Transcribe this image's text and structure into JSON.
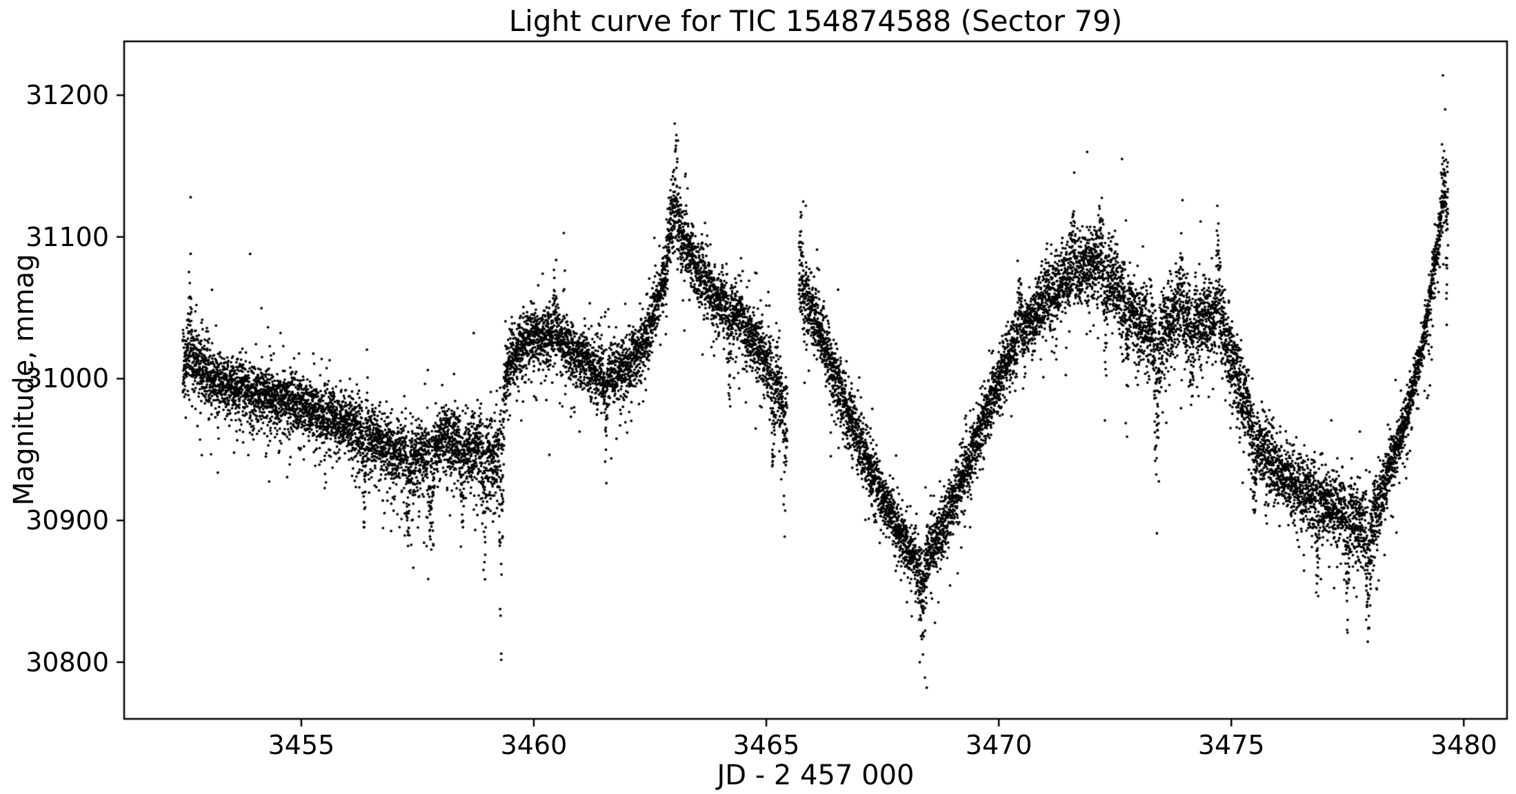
{
  "chart_data": {
    "type": "scatter",
    "title": "Light curve for TIC 154874588 (Sector 79)",
    "xlabel": "JD - 2 457 000",
    "ylabel": "Magnitude, mmag",
    "xlim": [
      3451.19,
      3480.93
    ],
    "ylim": [
      30760,
      31238
    ],
    "xticks": [
      3455,
      3460,
      3465,
      3470,
      3475,
      3480
    ],
    "yticks": [
      30800,
      30900,
      31000,
      31100,
      31200
    ],
    "grid": false,
    "legend": null,
    "background": "#ffffff",
    "marker": {
      "color": "#000000",
      "radius_px": 1.9
    },
    "data_start": 3452.45,
    "data_end": 3479.66,
    "gaps": [
      [
        3465.45,
        3465.7
      ]
    ],
    "points_per_day": 600,
    "seed": 20240613,
    "trend": [
      [
        3452.45,
        31012,
        30
      ],
      [
        3452.75,
        31012,
        24
      ],
      [
        3453.2,
        30998,
        21
      ],
      [
        3454.0,
        30990,
        21
      ],
      [
        3454.7,
        30984,
        21
      ],
      [
        3455.4,
        30976,
        21
      ],
      [
        3456.1,
        30966,
        22
      ],
      [
        3456.8,
        30952,
        24
      ],
      [
        3457.5,
        30943,
        26
      ],
      [
        3458.1,
        30957,
        24
      ],
      [
        3458.7,
        30950,
        26
      ],
      [
        3459.22,
        30942,
        30
      ],
      [
        3459.28,
        30975,
        36
      ],
      [
        3459.5,
        31015,
        22
      ],
      [
        3459.9,
        31028,
        21
      ],
      [
        3460.5,
        31030,
        21
      ],
      [
        3461.0,
        31015,
        22
      ],
      [
        3461.5,
        31000,
        23
      ],
      [
        3462.0,
        31008,
        22
      ],
      [
        3462.45,
        31030,
        22
      ],
      [
        3462.8,
        31072,
        22
      ],
      [
        3463.05,
        31112,
        22
      ],
      [
        3463.35,
        31088,
        22
      ],
      [
        3463.8,
        31060,
        22
      ],
      [
        3464.35,
        31048,
        22
      ],
      [
        3464.85,
        31020,
        24
      ],
      [
        3465.2,
        30998,
        28
      ],
      [
        3465.45,
        30970,
        32
      ],
      [
        3465.7,
        31062,
        28
      ],
      [
        3466.0,
        31048,
        24
      ],
      [
        3466.5,
        31000,
        22
      ],
      [
        3467.0,
        30955,
        21
      ],
      [
        3467.5,
        30917,
        21
      ],
      [
        3468.0,
        30883,
        21
      ],
      [
        3468.35,
        30866,
        21
      ],
      [
        3468.8,
        30896,
        21
      ],
      [
        3469.3,
        30936,
        21
      ],
      [
        3469.8,
        30982,
        22
      ],
      [
        3470.3,
        31022,
        23
      ],
      [
        3470.9,
        31052,
        24
      ],
      [
        3471.5,
        31075,
        25
      ],
      [
        3472.1,
        31082,
        25
      ],
      [
        3472.6,
        31060,
        27
      ],
      [
        3473.05,
        31040,
        25
      ],
      [
        3473.4,
        31028,
        30
      ],
      [
        3473.8,
        31042,
        28
      ],
      [
        3474.3,
        31038,
        30
      ],
      [
        3474.7,
        31045,
        30
      ],
      [
        3475.1,
        31005,
        26
      ],
      [
        3475.6,
        30952,
        25
      ],
      [
        3476.1,
        30930,
        25
      ],
      [
        3476.6,
        30920,
        25
      ],
      [
        3477.1,
        30913,
        26
      ],
      [
        3477.6,
        30903,
        27
      ],
      [
        3477.95,
        30888,
        28
      ],
      [
        3478.4,
        30936,
        20
      ],
      [
        3478.8,
        30978,
        16
      ],
      [
        3479.1,
        31020,
        15
      ],
      [
        3479.3,
        31065,
        15
      ],
      [
        3479.5,
        31108,
        16
      ],
      [
        3479.66,
        31138,
        18
      ]
    ],
    "dip_features": [
      [
        3456.35,
        0.05,
        65
      ],
      [
        3457.3,
        0.05,
        75
      ],
      [
        3457.8,
        0.06,
        85
      ],
      [
        3458.45,
        0.05,
        70
      ],
      [
        3458.95,
        0.05,
        75
      ],
      [
        3459.3,
        0.055,
        160
      ],
      [
        3461.55,
        0.04,
        55
      ],
      [
        3464.2,
        0.05,
        75
      ],
      [
        3465.15,
        0.04,
        85
      ],
      [
        3465.4,
        0.04,
        90
      ],
      [
        3468.35,
        0.1,
        55
      ],
      [
        3472.3,
        0.05,
        65
      ],
      [
        3472.75,
        0.04,
        70
      ],
      [
        3473.4,
        0.06,
        140
      ],
      [
        3474.15,
        0.04,
        60
      ],
      [
        3475.5,
        0.05,
        85
      ],
      [
        3476.85,
        0.05,
        70
      ],
      [
        3477.5,
        0.05,
        75
      ],
      [
        3477.95,
        0.06,
        70
      ],
      [
        3479.64,
        0.025,
        130
      ]
    ],
    "spike_features": [
      [
        3452.6,
        0.05,
        -70
      ],
      [
        3460.45,
        0.05,
        -50
      ],
      [
        3462.95,
        0.08,
        -45
      ],
      [
        3463.05,
        0.05,
        -55
      ],
      [
        3465.75,
        0.06,
        -50
      ],
      [
        3470.45,
        0.05,
        -50
      ],
      [
        3471.6,
        0.06,
        -50
      ],
      [
        3472.2,
        0.05,
        -55
      ],
      [
        3473.92,
        0.06,
        -65
      ],
      [
        3474.72,
        0.06,
        -75
      ],
      [
        3479.55,
        0.06,
        -45
      ]
    ],
    "outlier_points": [
      [
        3452.62,
        31128
      ],
      [
        3453.9,
        31088
      ],
      [
        3459.3,
        30806
      ],
      [
        3463.03,
        31180
      ],
      [
        3463.1,
        31168
      ],
      [
        3465.85,
        31122
      ],
      [
        3468.3,
        30800
      ],
      [
        3468.45,
        30782
      ],
      [
        3471.9,
        31160
      ],
      [
        3472.65,
        31155
      ],
      [
        3474.7,
        31122
      ],
      [
        3477.9,
        30830
      ],
      [
        3479.55,
        31214
      ],
      [
        3479.6,
        31190
      ]
    ]
  }
}
